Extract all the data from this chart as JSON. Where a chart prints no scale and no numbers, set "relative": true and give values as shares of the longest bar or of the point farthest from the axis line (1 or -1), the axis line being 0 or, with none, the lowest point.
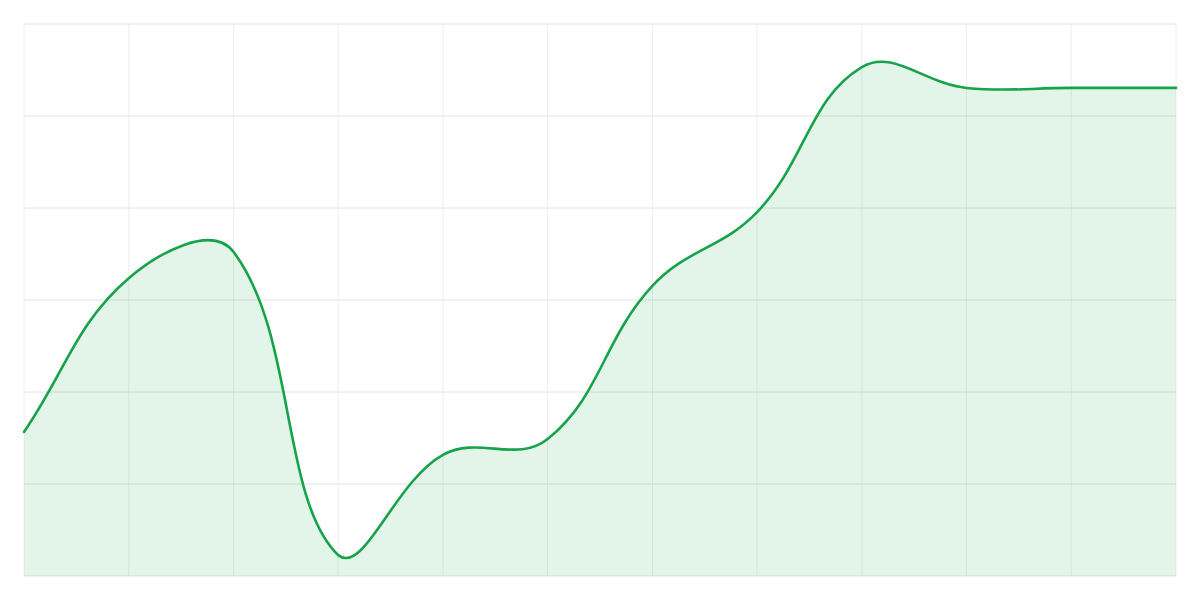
{
  "chart_data": {
    "type": "area",
    "relative": true,
    "grid": true,
    "categories": [
      null,
      null,
      null,
      null,
      null,
      null,
      null,
      null,
      null,
      null,
      null,
      null
    ],
    "series": [
      {
        "color": "#16a34a",
        "values": [
          0.283,
          0.585,
          0.637,
          0.041,
          0.238,
          0.269,
          0.57,
          0.715,
          1.0,
          0.959,
          0.959,
          0.959
        ]
      }
    ]
  }
}
